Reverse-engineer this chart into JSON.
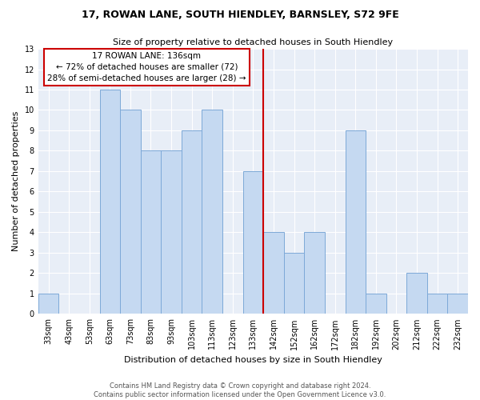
{
  "title": "17, ROWAN LANE, SOUTH HIENDLEY, BARNSLEY, S72 9FE",
  "subtitle": "Size of property relative to detached houses in South Hiendley",
  "xlabel": "Distribution of detached houses by size in South Hiendley",
  "ylabel": "Number of detached properties",
  "footnote1": "Contains HM Land Registry data © Crown copyright and database right 2024.",
  "footnote2": "Contains public sector information licensed under the Open Government Licence v3.0.",
  "bar_labels": [
    "33sqm",
    "43sqm",
    "53sqm",
    "63sqm",
    "73sqm",
    "83sqm",
    "93sqm",
    "103sqm",
    "113sqm",
    "123sqm",
    "133sqm",
    "142sqm",
    "152sqm",
    "162sqm",
    "172sqm",
    "182sqm",
    "192sqm",
    "202sqm",
    "212sqm",
    "222sqm",
    "232sqm"
  ],
  "bar_values": [
    1,
    0,
    0,
    11,
    10,
    8,
    8,
    9,
    10,
    0,
    7,
    4,
    3,
    4,
    0,
    9,
    1,
    0,
    2,
    1,
    1
  ],
  "bar_color": "#c5d9f1",
  "bar_edge_color": "#7da9d8",
  "vline_x_index": 10.5,
  "vline_color": "#cc0000",
  "annotation_title": "17 ROWAN LANE: 136sqm",
  "annotation_line1": "← 72% of detached houses are smaller (72)",
  "annotation_line2": "28% of semi-detached houses are larger (28) →",
  "annotation_box_color": "#ffffff",
  "annotation_box_edge": "#cc0000",
  "ylim": [
    0,
    13
  ],
  "yticks": [
    0,
    1,
    2,
    3,
    4,
    5,
    6,
    7,
    8,
    9,
    10,
    11,
    12,
    13
  ],
  "bg_color": "#e8eef7",
  "grid_color": "#ffffff",
  "title_fontsize": 9,
  "subtitle_fontsize": 8,
  "ylabel_fontsize": 8,
  "xlabel_fontsize": 8,
  "tick_fontsize": 7,
  "footnote_fontsize": 6
}
